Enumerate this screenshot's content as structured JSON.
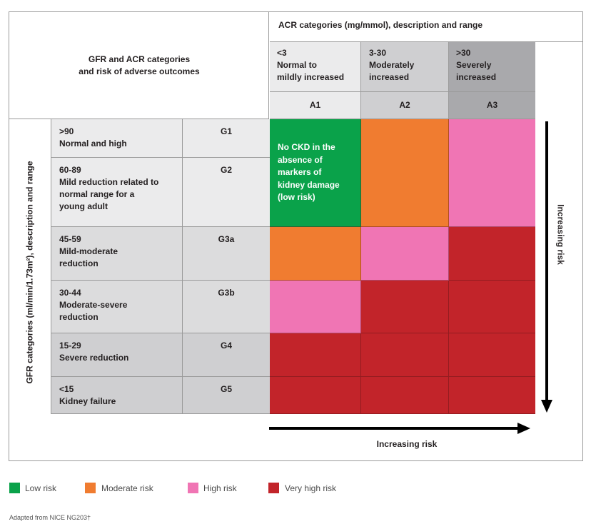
{
  "colors": {
    "low": "#0aa24a",
    "moderate": "#f07c30",
    "high": "#f075b4",
    "very_high": "#c2242a"
  },
  "header": {
    "title": "GFR and ACR categories\nand risk of adverse outcomes",
    "acr_title": "ACR categories (mg/mmol), description and range"
  },
  "acr": [
    {
      "range_desc": "<3\nNormal to\nmildly increased",
      "code": "A1"
    },
    {
      "range_desc": "3-30\nModerately\nincreased",
      "code": "A2"
    },
    {
      "range_desc": ">30\nSeverely\nincreased",
      "code": "A3"
    }
  ],
  "gfr_axis_label": "GFR categories (ml/min/1.73m²), description and range",
  "gfr": [
    {
      "desc": ">90\nNormal and high",
      "code": "G1",
      "cells": [
        "low",
        "moderate",
        "high"
      ]
    },
    {
      "desc": "60-89\nMild reduction related to\nnormal range for a\nyoung adult",
      "code": "G2",
      "cells": [
        "low",
        "moderate",
        "high"
      ]
    },
    {
      "desc": "45-59\nMild-moderate\nreduction",
      "code": "G3a",
      "cells": [
        "moderate",
        "high",
        "very_high"
      ]
    },
    {
      "desc": "30-44\nModerate-severe\nreduction",
      "code": "G3b",
      "cells": [
        "high",
        "very_high",
        "very_high"
      ]
    },
    {
      "desc": "15-29\nSevere reduction",
      "code": "G4",
      "cells": [
        "very_high",
        "very_high",
        "very_high"
      ]
    },
    {
      "desc": "<15\nKidney failure",
      "code": "G5",
      "cells": [
        "very_high",
        "very_high",
        "very_high"
      ]
    }
  ],
  "no_ckd_text": "No CKD in the\nabsence of\nmarkers of\nkidney damage\n(low risk)",
  "arrows": {
    "horizontal_label": "Increasing risk",
    "vertical_label": "Increasing risk"
  },
  "legend": [
    {
      "key": "low",
      "label": "Low risk"
    },
    {
      "key": "moderate",
      "label": "Moderate risk"
    },
    {
      "key": "high",
      "label": "High risk"
    },
    {
      "key": "very_high",
      "label": "Very high risk"
    }
  ],
  "footnote": "Adapted from NICE NG203†"
}
